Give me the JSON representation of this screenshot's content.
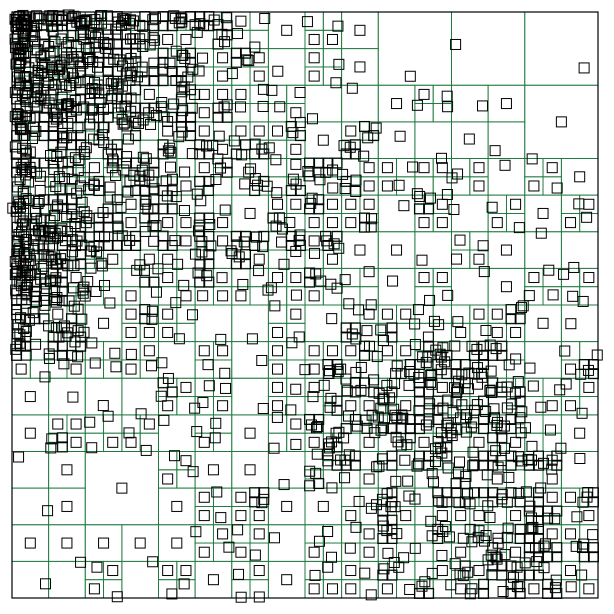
{
  "diagram": {
    "type": "quadtree",
    "background": "#ffffff",
    "colors": {
      "partition_lines": "#1f7a3f",
      "boundary": "#000000",
      "items": "#000000"
    },
    "levels": {
      "max_depth": 5,
      "min_items_to_split": 1
    },
    "item_shape": "square",
    "item_count_estimate": 1200,
    "distribution": {
      "dense_regions": [
        {
          "name": "upper-left-cluster",
          "center": [
            "left",
            "top"
          ],
          "density": "very-high"
        },
        {
          "name": "left-middle-cluster",
          "center": [
            "left",
            "middle"
          ],
          "density": "very-high"
        },
        {
          "name": "lower-right-cluster",
          "center": [
            "right",
            "lower-middle"
          ],
          "density": "high"
        }
      ],
      "sparse_regions": [
        {
          "name": "lower-left",
          "density": "low"
        },
        {
          "name": "upper-right",
          "density": "low"
        },
        {
          "name": "bottom-center",
          "density": "low"
        }
      ]
    }
  }
}
